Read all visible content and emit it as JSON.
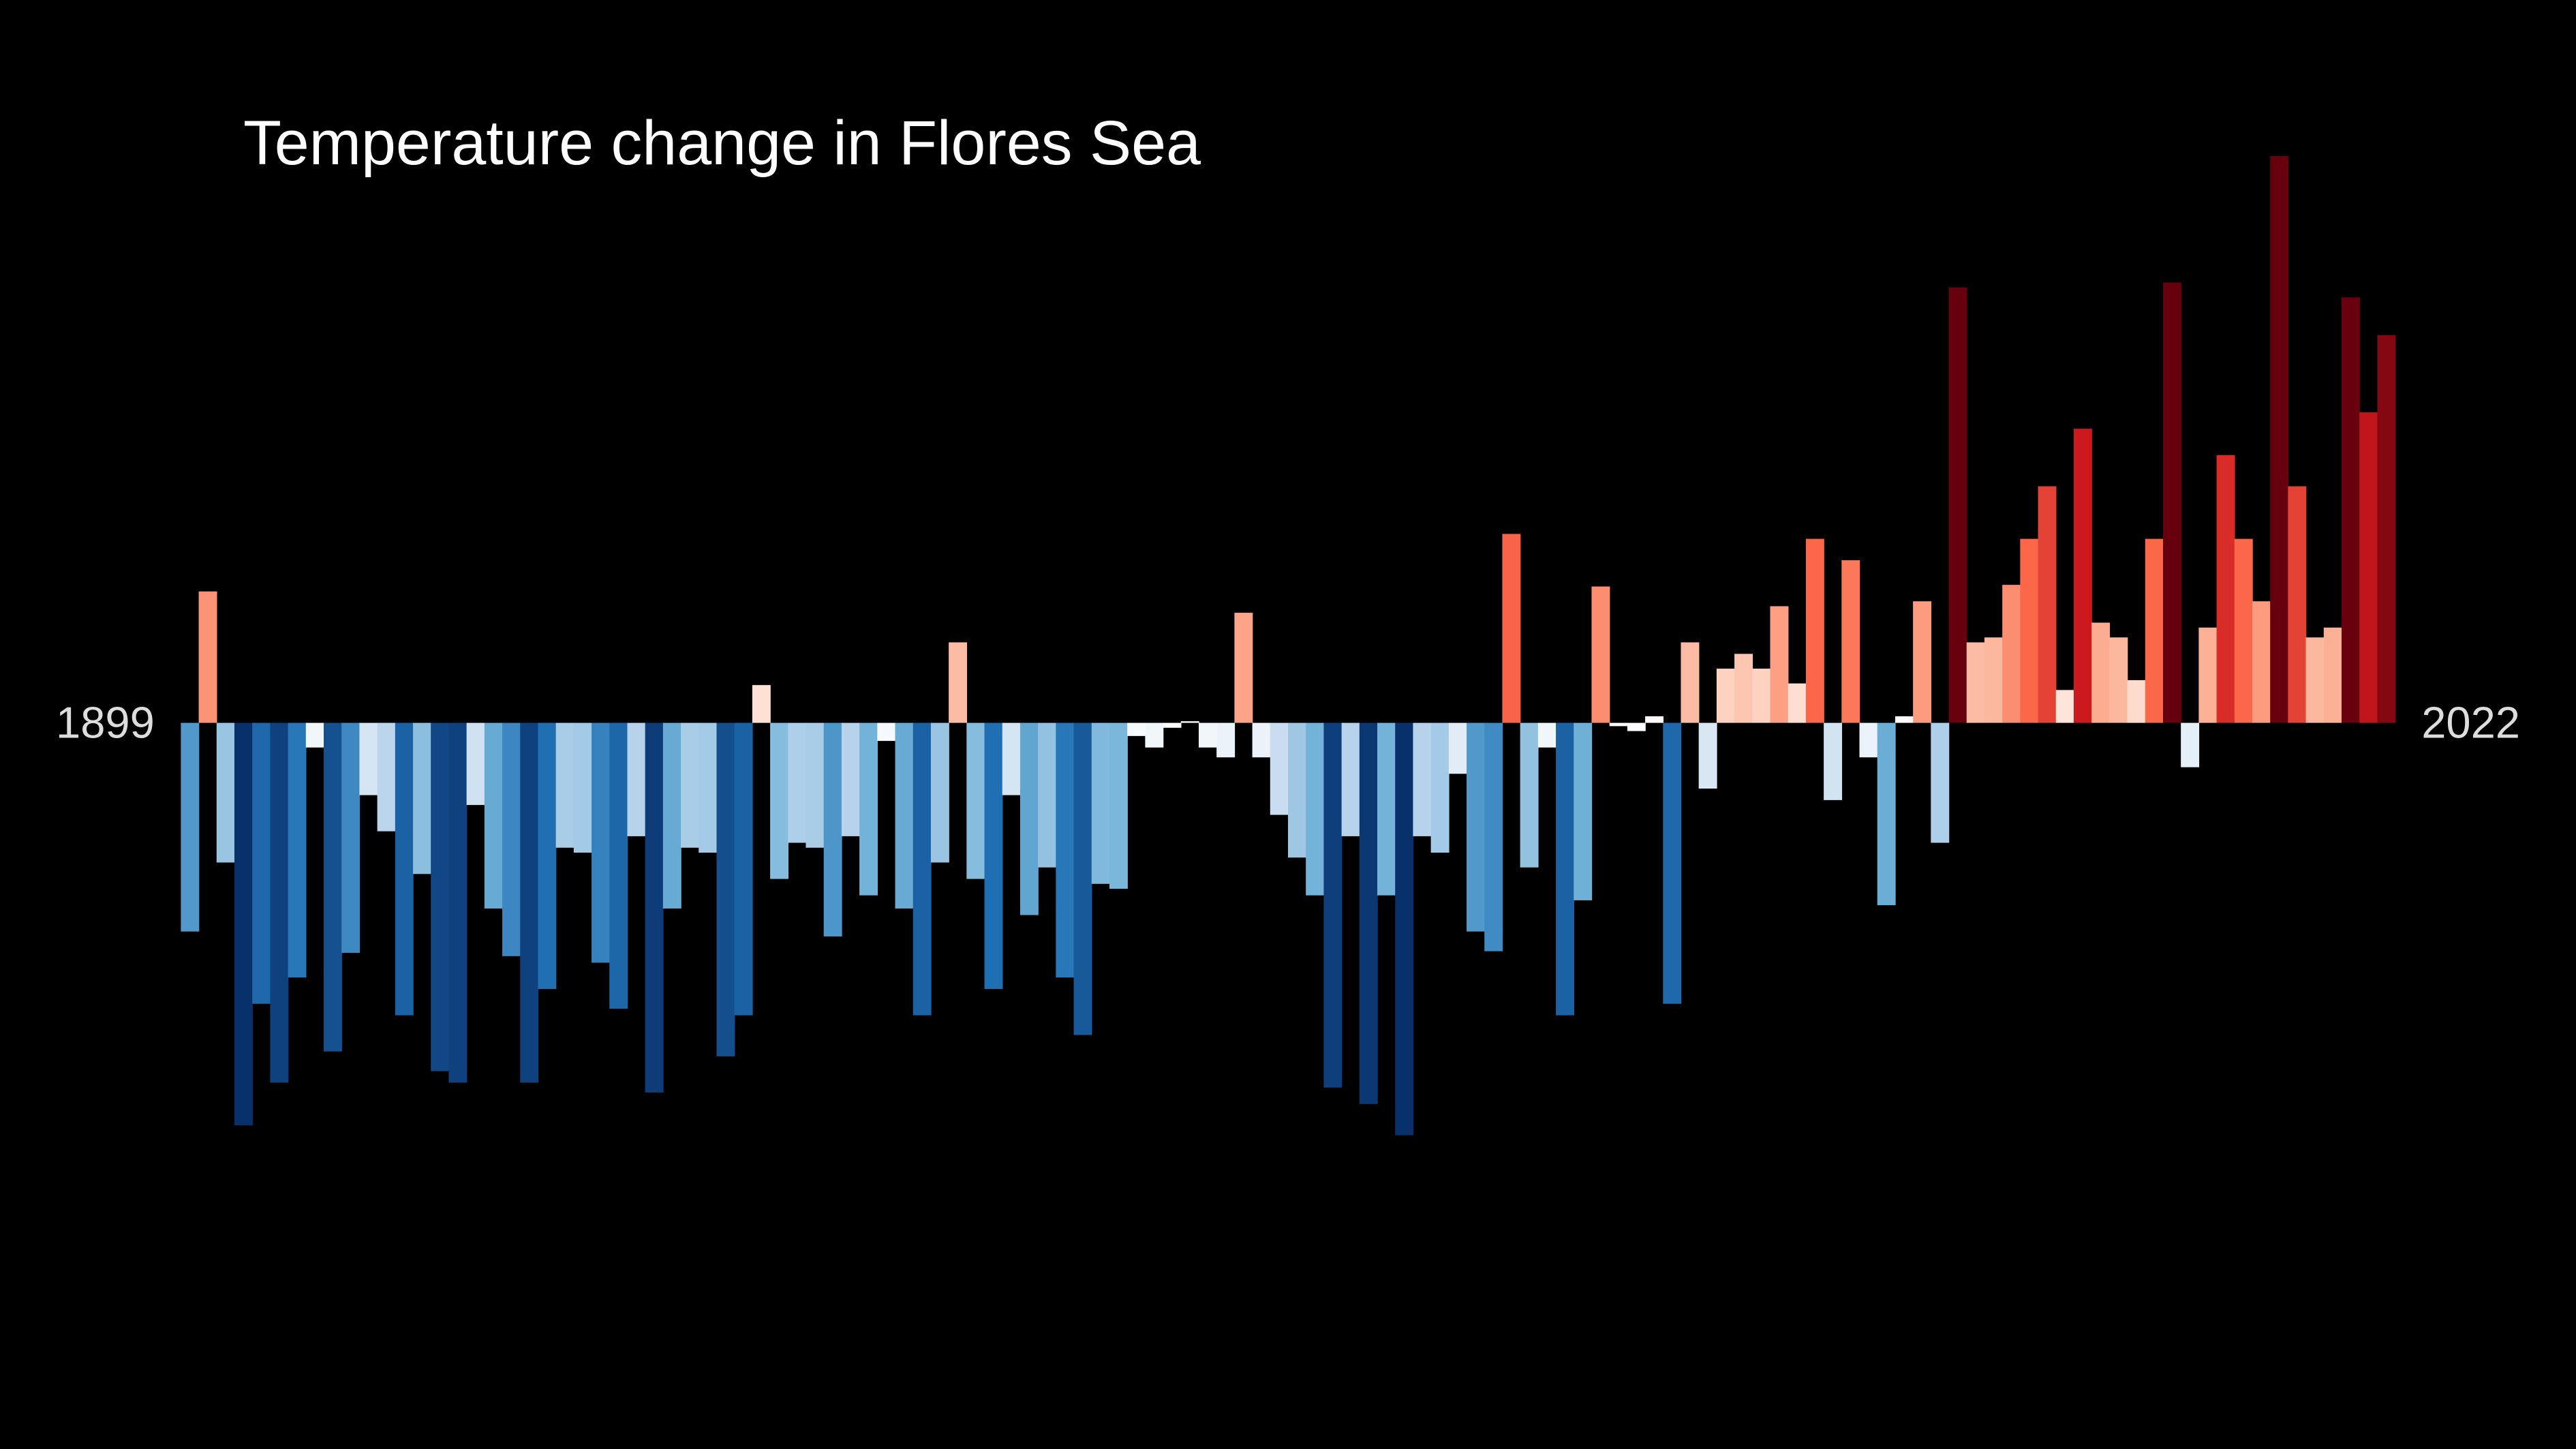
{
  "chart_data": {
    "type": "bar",
    "title": "Temperature change in Flores Sea",
    "categories": [
      1899,
      null,
      null,
      null,
      null,
      null,
      null,
      null,
      null,
      null,
      null,
      null,
      null,
      null,
      null,
      null,
      null,
      null,
      null,
      null,
      null,
      null,
      null,
      null,
      null,
      null,
      null,
      null,
      null,
      null,
      null,
      null,
      null,
      null,
      null,
      null,
      null,
      null,
      null,
      null,
      null,
      null,
      null,
      null,
      null,
      null,
      null,
      null,
      null,
      null,
      null,
      null,
      null,
      null,
      null,
      null,
      null,
      null,
      null,
      null,
      null,
      null,
      null,
      null,
      null,
      null,
      null,
      null,
      null,
      null,
      null,
      null,
      null,
      null,
      null,
      null,
      null,
      null,
      null,
      null,
      null,
      null,
      null,
      null,
      null,
      null,
      null,
      null,
      null,
      null,
      null,
      null,
      null,
      null,
      null,
      null,
      null,
      null,
      null,
      null,
      null,
      null,
      null,
      null,
      null,
      null,
      null,
      null,
      null,
      null,
      null,
      null,
      null,
      null,
      null,
      null,
      null,
      null,
      null,
      null,
      null,
      null,
      null,
      2022
    ],
    "values": [
      -1.27,
      0.8,
      -0.85,
      -2.45,
      -1.71,
      -2.19,
      -1.55,
      -0.15,
      -2.0,
      -1.4,
      -0.44,
      -0.66,
      -1.78,
      -0.92,
      -2.12,
      -2.19,
      -0.5,
      -1.13,
      -1.42,
      -2.19,
      -1.62,
      -0.76,
      -0.79,
      -1.46,
      -1.74,
      -0.69,
      -2.25,
      -1.13,
      -0.76,
      -0.79,
      -2.03,
      -1.78,
      0.23,
      -0.95,
      -0.73,
      -0.76,
      -1.3,
      -0.69,
      -1.05,
      -0.11,
      -1.13,
      -1.78,
      -0.85,
      0.49,
      -0.95,
      -1.62,
      -0.44,
      -1.17,
      -0.88,
      -1.55,
      -1.9,
      -0.98,
      -1.01,
      -0.08,
      -0.15,
      -0.03,
      0.01,
      -0.15,
      -0.21,
      0.67,
      -0.21,
      -0.56,
      -0.82,
      -1.05,
      -2.22,
      -0.69,
      -2.32,
      -1.05,
      -2.51,
      -0.69,
      -0.79,
      -0.31,
      -1.27,
      -1.39,
      1.15,
      -0.88,
      -0.15,
      -1.78,
      -1.08,
      0.83,
      -0.02,
      -0.05,
      0.04,
      -1.71,
      0.49,
      -0.4,
      0.33,
      0.42,
      0.33,
      0.71,
      0.24,
      1.12,
      -0.47,
      0.99,
      -0.21,
      -1.11,
      0.04,
      0.74,
      -0.73,
      2.65,
      0.49,
      0.52,
      0.84,
      1.12,
      1.44,
      0.2,
      1.79,
      0.61,
      0.52,
      0.26,
      1.12,
      2.68,
      -0.27,
      0.58,
      1.63,
      1.12,
      0.74,
      3.45,
      1.44,
      0.52,
      0.58,
      2.59,
      1.89,
      2.36
    ],
    "ylim": [
      -4.4,
      4.4
    ],
    "colorscale": [
      [
        -2.4,
        "#08306b"
      ],
      [
        -1.6,
        "#2171b5"
      ],
      [
        -1.1,
        "#6baed6"
      ],
      [
        -0.6,
        "#c6dbef"
      ],
      [
        0,
        "#ffffff"
      ],
      [
        0.5,
        "#fcbba1"
      ],
      [
        1.1,
        "#fb6a4a"
      ],
      [
        1.8,
        "#cb181d"
      ],
      [
        2.6,
        "#67000d"
      ]
    ],
    "background": "#000000"
  }
}
